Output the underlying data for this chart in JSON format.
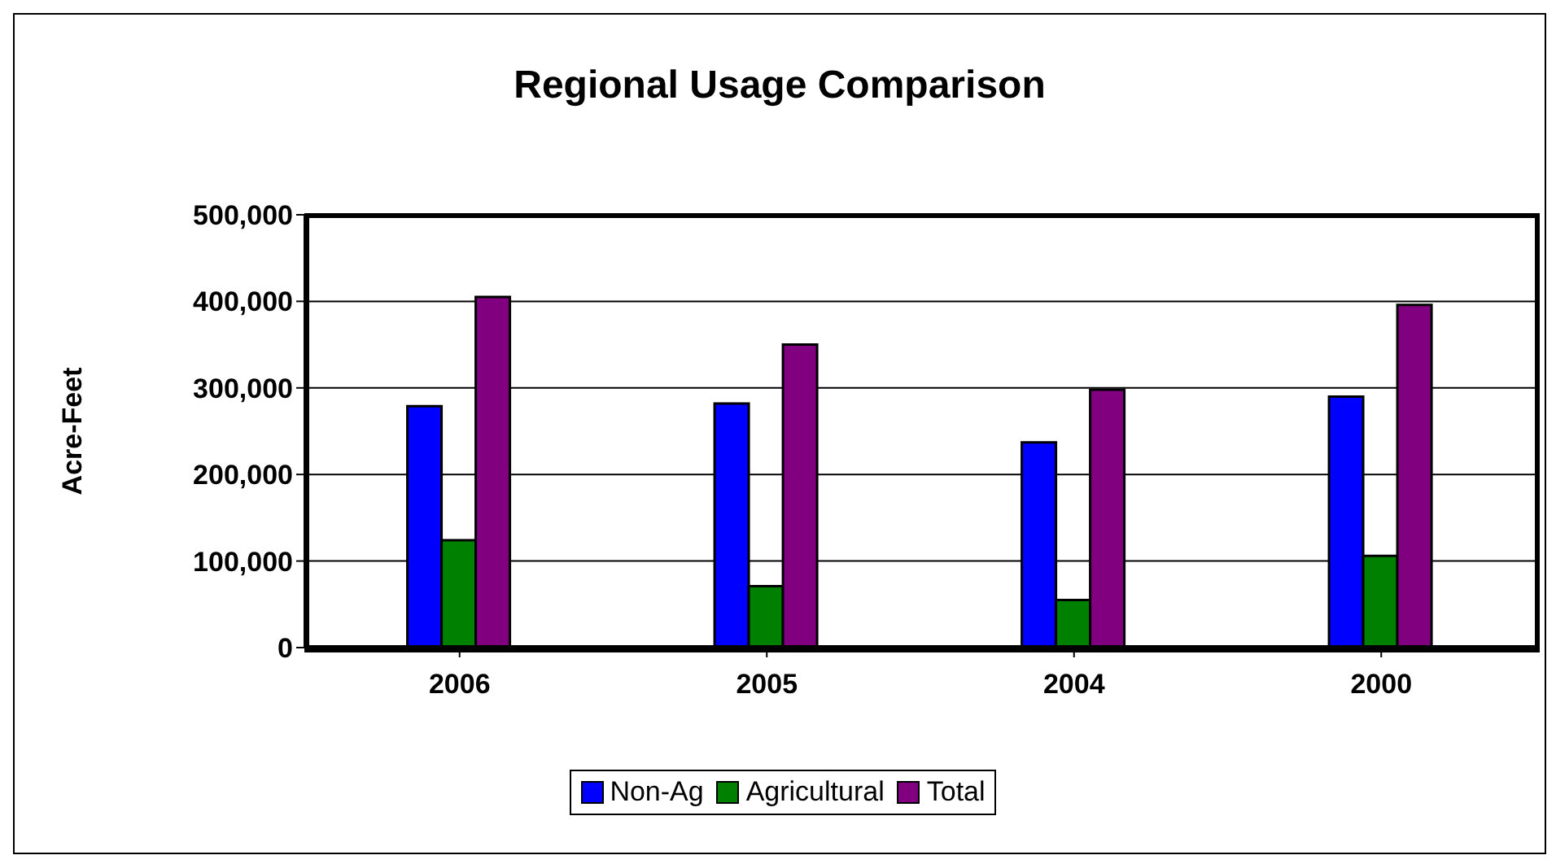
{
  "chart_data": {
    "type": "bar",
    "title": "Regional Usage Comparison",
    "ylabel": "Acre-Feet",
    "categories": [
      "2006",
      "2005",
      "2004",
      "2000"
    ],
    "series": [
      {
        "name": "Non-Ag",
        "color": "#0000ff",
        "values": [
          279000,
          282000,
          237000,
          290000
        ]
      },
      {
        "name": "Agricultural",
        "color": "#008000",
        "values": [
          124000,
          71000,
          55000,
          106000
        ]
      },
      {
        "name": "Total",
        "color": "#800080",
        "values": [
          405000,
          350000,
          298000,
          396000
        ]
      }
    ],
    "ylim": [
      0,
      500000
    ],
    "yticks": [
      0,
      {
        "value": 100000,
        "label": "100,000"
      },
      {
        "value": 200000,
        "label": "200,000"
      },
      {
        "value": 300000,
        "label": "300,000"
      },
      {
        "value": 400000,
        "label": "400,000"
      },
      {
        "value": 500000,
        "label": "500,000"
      }
    ],
    "grid": "y",
    "legend": "bottom"
  }
}
